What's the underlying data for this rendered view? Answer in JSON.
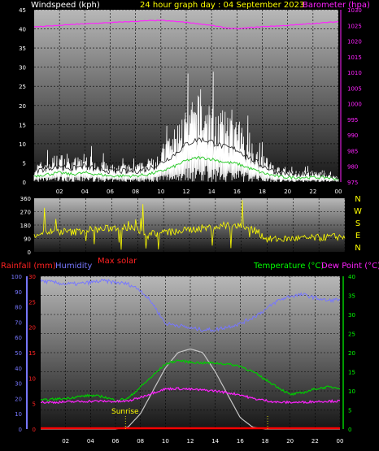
{
  "header": {
    "windspeed_label": "Windspeed (kph)",
    "title": "24 hour graph day : 04 September 2023",
    "barometer_label": "Barometer (hpa)"
  },
  "wind_axis_ticks": [
    "0",
    "5",
    "10",
    "15",
    "20",
    "25",
    "30",
    "35",
    "40",
    "45"
  ],
  "baro_axis_ticks": [
    "975",
    "980",
    "985",
    "990",
    "995",
    "1000",
    "1005",
    "1010",
    "1015",
    "1020",
    "1025",
    "1030"
  ],
  "time_ticks": [
    "02",
    "04",
    "06",
    "08",
    "10",
    "12",
    "14",
    "16",
    "18",
    "20",
    "22",
    "00"
  ],
  "dir_axis_ticks": [
    "0",
    "90",
    "180",
    "270",
    "360"
  ],
  "dir_letters": [
    "N",
    "W",
    "S",
    "E",
    "N"
  ],
  "lower": {
    "rainfall_label": "Rainfall (mm)",
    "humidity_label": "Humidity",
    "temperature_label": "Temperature (°C)",
    "dewpoint_label": "Dew Point (°C)",
    "maxsolar_label": "Max solar",
    "sunrise_label": "Sunrise",
    "humidity_ticks": [
      "0",
      "10",
      "20",
      "30",
      "40",
      "50",
      "60",
      "70",
      "80",
      "90",
      "100"
    ],
    "rain_ticks": [
      "0",
      "5",
      "10",
      "15",
      "20",
      "25",
      "30"
    ],
    "temp_ticks": [
      "0",
      "5",
      "10",
      "15",
      "20",
      "25",
      "30",
      "35",
      "40"
    ]
  },
  "colors": {
    "windspeed": "#ffffff",
    "gust": "#cccccc",
    "wind_avg": "#33cc33",
    "barometer": "#ff22ff",
    "direction": "#ffff00",
    "humidity": "#7777ff",
    "rain": "#ff0000",
    "temperature": "#00cc00",
    "dewpoint": "#ff22ff",
    "solar": "#c8c8c8",
    "header_yellow": "#ffff00",
    "label_red": "#ff2222",
    "label_green": "#00ff00"
  },
  "chart_data": [
    {
      "type": "line",
      "ylabel": "Windspeed (kph)",
      "y2label": "Barometer (hpa)",
      "ylim": [
        0,
        45
      ],
      "y2lim": [
        975,
        1030
      ],
      "x": [
        "00",
        "01",
        "02",
        "03",
        "04",
        "05",
        "06",
        "07",
        "08",
        "09",
        "10",
        "11",
        "12",
        "13",
        "14",
        "15",
        "16",
        "17",
        "18",
        "19",
        "20",
        "21",
        "22",
        "23",
        "24"
      ],
      "series": [
        {
          "name": "Windspeed (kph)",
          "values": [
            3,
            4,
            5,
            4,
            5,
            4,
            3,
            3,
            3,
            4,
            6,
            9,
            13,
            15,
            14,
            12,
            11,
            8,
            5,
            3,
            2,
            2,
            2,
            2,
            1
          ]
        },
        {
          "name": "Barometer (hpa)",
          "values": [
            1024.5,
            1024.8,
            1025.0,
            1025.3,
            1025.5,
            1025.7,
            1025.9,
            1026.1,
            1026.3,
            1026.5,
            1026.6,
            1026.3,
            1026.0,
            1025.5,
            1025.0,
            1024.3,
            1023.9,
            1024.3,
            1024.6,
            1024.8,
            1025.0,
            1025.3,
            1025.6,
            1025.9,
            1026.2
          ]
        }
      ]
    },
    {
      "type": "scatter",
      "ylim": [
        0,
        360
      ],
      "x": [
        "00",
        "01",
        "02",
        "03",
        "04",
        "05",
        "06",
        "07",
        "08",
        "09",
        "10",
        "11",
        "12",
        "13",
        "14",
        "15",
        "16",
        "17",
        "18",
        "19",
        "20",
        "21",
        "22",
        "23",
        "24"
      ],
      "series": [
        {
          "name": "Wind direction",
          "values": [
            120,
            135,
            140,
            130,
            150,
            150,
            160,
            170,
            145,
            125,
            130,
            135,
            150,
            160,
            165,
            175,
            170,
            150,
            85,
            85,
            90,
            90,
            95,
            100,
            105
          ]
        }
      ]
    },
    {
      "type": "line",
      "ylim": [
        0,
        100
      ],
      "y2lim": [
        0,
        40
      ],
      "x": [
        "00",
        "01",
        "02",
        "03",
        "04",
        "05",
        "06",
        "07",
        "08",
        "09",
        "10",
        "11",
        "12",
        "13",
        "14",
        "15",
        "16",
        "17",
        "18",
        "19",
        "20",
        "21",
        "22",
        "23",
        "24"
      ],
      "series": [
        {
          "name": "Humidity",
          "values": [
            97,
            96,
            95,
            95,
            96,
            97,
            96,
            95,
            91,
            82,
            69,
            68,
            66,
            65,
            65,
            67,
            69,
            73,
            78,
            84,
            87,
            88,
            86,
            84,
            85
          ]
        },
        {
          "name": "Temperature (°C)",
          "values": [
            7.5,
            7.8,
            8,
            8.5,
            8.8,
            8.5,
            7.5,
            8,
            11,
            14,
            17,
            18,
            17.5,
            17.3,
            17.3,
            17,
            16.5,
            15,
            13,
            11,
            9,
            9.5,
            10.5,
            11,
            10.8
          ]
        },
        {
          "name": "Dew Point (°C)",
          "values": [
            7,
            7,
            7.1,
            7.2,
            7.3,
            7.3,
            7.2,
            7.3,
            8.3,
            9.5,
            10.5,
            10.6,
            10.4,
            10.2,
            10,
            9.5,
            9,
            8,
            7.5,
            7,
            7,
            7,
            7.2,
            7.3,
            7.3
          ]
        },
        {
          "name": "Rainfall (mm)",
          "values": [
            0,
            0,
            0,
            0,
            0,
            0,
            0,
            0,
            0,
            0,
            0,
            0,
            0,
            0,
            0,
            0,
            0,
            0,
            0,
            0,
            0,
            0,
            0,
            0,
            0
          ]
        },
        {
          "name": "Max solar",
          "values": [
            0,
            0,
            0,
            0,
            0,
            0,
            0,
            0.5,
            4,
            10,
            16,
            20,
            21,
            20,
            15,
            9,
            3,
            0.5,
            0,
            0,
            0,
            0,
            0,
            0,
            0
          ]
        }
      ]
    }
  ]
}
